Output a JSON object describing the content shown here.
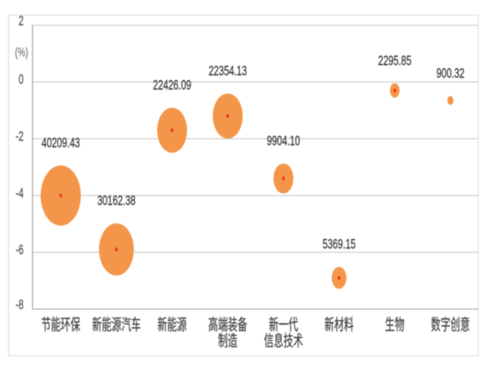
{
  "chart_data": {
    "type": "bubble",
    "title": "",
    "xlabel": "",
    "ylabel": "(%)",
    "ylim": [
      -8,
      2
    ],
    "yticks": [
      "2",
      "0",
      "-2",
      "-4",
      "-6",
      "-8"
    ],
    "ytick_values": [
      2,
      0,
      -2,
      -4,
      -6,
      -8
    ],
    "grid": true,
    "legend": "none",
    "categories": [
      "节能环保",
      "新能源汽车",
      "新能源",
      "高端装备\n制造",
      "新一代\n信息技术",
      "新材料",
      "生物",
      "数字创意"
    ],
    "points": [
      {
        "category": "节能环保",
        "growth_pct": -4.0,
        "size": 40209.43,
        "size_label": "40209.43"
      },
      {
        "category": "新能源汽车",
        "growth_pct": -5.9,
        "size": 30162.38,
        "size_label": "30162.38"
      },
      {
        "category": "新能源",
        "growth_pct": -1.7,
        "size": 22426.09,
        "size_label": "22426.09"
      },
      {
        "category": "高端装备制造",
        "growth_pct": -1.2,
        "size": 22354.13,
        "size_label": "22354.13"
      },
      {
        "category": "新一代信息技术",
        "growth_pct": -3.4,
        "size": 9904.1,
        "size_label": "9904.10"
      },
      {
        "category": "新材料",
        "growth_pct": -6.9,
        "size": 5369.15,
        "size_label": "5369.15"
      },
      {
        "category": "生物",
        "growth_pct": -0.3,
        "size": 2295.85,
        "size_label": "2295.85"
      },
      {
        "category": "数字创意",
        "growth_pct": -0.65,
        "size": 900.32,
        "size_label": "900.32"
      }
    ],
    "colors": {
      "bubble": "#F39649",
      "bubble_dot": "#F52A17",
      "gridline": "#C9C9C9",
      "axis": "#9B9B9B",
      "frame": "#D9D9D9",
      "data_label": "#3F3F3F",
      "tick_label": "#595959",
      "category_label": "#404040",
      "background": "#FFFFFF"
    }
  }
}
